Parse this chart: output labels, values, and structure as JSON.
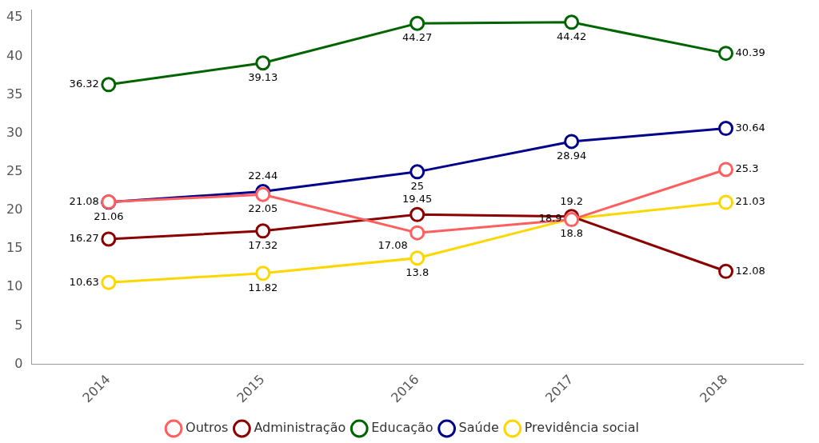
{
  "chart_data": {
    "type": "line",
    "categories": [
      "2014",
      "2015",
      "2016",
      "2017",
      "2018"
    ],
    "series": [
      {
        "name": "Outros",
        "color": "#ff5f5f",
        "values": [
          21.08,
          22.05,
          17.08,
          18.8,
          25.3
        ]
      },
      {
        "name": "Administração",
        "color": "#8b0000",
        "values": [
          16.27,
          17.32,
          19.45,
          19.2,
          12.08
        ]
      },
      {
        "name": "Educação",
        "color": "#006400",
        "values": [
          36.32,
          39.13,
          44.27,
          44.42,
          40.39
        ]
      },
      {
        "name": "Saúde",
        "color": "#00008b",
        "values": [
          21.06,
          22.44,
          25,
          28.94,
          30.64
        ]
      },
      {
        "name": "Previdência social",
        "color": "#ffd700",
        "values": [
          10.63,
          11.82,
          13.8,
          18.9,
          21.03
        ]
      }
    ],
    "ylim": [
      0,
      46
    ],
    "yticks": [
      0,
      5,
      10,
      15,
      20,
      25,
      30,
      35,
      40,
      45
    ],
    "grid": false,
    "legend": "bottom",
    "marker": "circle",
    "line_style": "solid",
    "data_labels": true
  }
}
